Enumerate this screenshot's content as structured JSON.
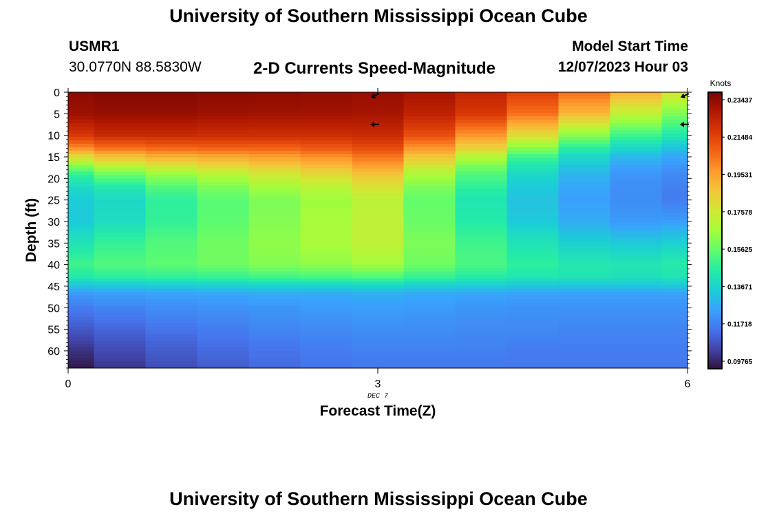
{
  "header": {
    "title": "University of Southern Mississippi Ocean Cube",
    "station_id": "USMR1",
    "coords": "30.0770N  88.5830W",
    "subtitle": "2-D Currents Speed-Magnitude",
    "model_start_label": "Model Start Time",
    "model_start_value": "12/07/2023 Hour 03"
  },
  "footer": {
    "title": "University of Southern Mississippi Ocean Cube"
  },
  "colors": {
    "colormap": [
      "#30123b",
      "#4145ab",
      "#4675ed",
      "#39a2fc",
      "#1bcfd4",
      "#24eca6",
      "#61fc6c",
      "#a4fc3b",
      "#d1e834",
      "#f3c63a",
      "#fe9b2d",
      "#f36315",
      "#d93806",
      "#b11901",
      "#7a0402"
    ]
  },
  "chart_data": {
    "type": "heatmap",
    "title": "2-D Currents Speed-Magnitude",
    "xlabel": "Forecast Time(Z)",
    "ylabel": "Depth (ft)",
    "x_date_label": "DEC 7",
    "xlim": [
      0,
      6
    ],
    "ylim": [
      0,
      64
    ],
    "y_inverted": true,
    "x_ticks": [
      0,
      3,
      6
    ],
    "y_ticks": [
      0,
      5,
      10,
      15,
      20,
      25,
      30,
      35,
      40,
      45,
      50,
      55,
      60
    ],
    "colorbar": {
      "label": "Knots",
      "range": [
        0.0937,
        0.2383
      ],
      "ticks": [
        "0.09765",
        "0.11718",
        "0.13671",
        "0.15625",
        "0.17578",
        "0.19531",
        "0.21484",
        "0.23437"
      ]
    },
    "x": [
      0,
      0.5,
      1,
      1.5,
      2,
      2.5,
      3,
      3.5,
      4,
      4.5,
      5,
      5.5,
      6
    ],
    "y": [
      0,
      5,
      10,
      13,
      15,
      17,
      19,
      22,
      25,
      30,
      35,
      40,
      43,
      45,
      47,
      50,
      55,
      60,
      64
    ],
    "speed_knots": [
      [
        0.235,
        0.236,
        0.236,
        0.235,
        0.235,
        0.234,
        0.233,
        0.23,
        0.224,
        0.216,
        0.205,
        0.192,
        0.178
      ],
      [
        0.232,
        0.233,
        0.233,
        0.232,
        0.231,
        0.231,
        0.23,
        0.225,
        0.218,
        0.205,
        0.19,
        0.172,
        0.16
      ],
      [
        0.218,
        0.222,
        0.222,
        0.221,
        0.221,
        0.221,
        0.222,
        0.212,
        0.198,
        0.18,
        0.162,
        0.15,
        0.144
      ],
      [
        0.2,
        0.205,
        0.207,
        0.208,
        0.208,
        0.21,
        0.213,
        0.198,
        0.183,
        0.162,
        0.146,
        0.138,
        0.132
      ],
      [
        0.18,
        0.188,
        0.192,
        0.194,
        0.196,
        0.199,
        0.204,
        0.187,
        0.17,
        0.15,
        0.138,
        0.13,
        0.126
      ],
      [
        0.162,
        0.172,
        0.178,
        0.182,
        0.186,
        0.19,
        0.196,
        0.177,
        0.16,
        0.143,
        0.133,
        0.125,
        0.122
      ],
      [
        0.148,
        0.157,
        0.164,
        0.17,
        0.176,
        0.181,
        0.187,
        0.168,
        0.153,
        0.138,
        0.129,
        0.122,
        0.119
      ],
      [
        0.139,
        0.144,
        0.153,
        0.16,
        0.166,
        0.171,
        0.178,
        0.16,
        0.147,
        0.134,
        0.126,
        0.12,
        0.117
      ],
      [
        0.134,
        0.138,
        0.147,
        0.154,
        0.16,
        0.165,
        0.171,
        0.156,
        0.143,
        0.132,
        0.124,
        0.12,
        0.116
      ],
      [
        0.134,
        0.14,
        0.148,
        0.155,
        0.161,
        0.167,
        0.172,
        0.157,
        0.145,
        0.134,
        0.127,
        0.123,
        0.124
      ],
      [
        0.142,
        0.148,
        0.153,
        0.158,
        0.163,
        0.167,
        0.172,
        0.16,
        0.15,
        0.142,
        0.136,
        0.134,
        0.136
      ],
      [
        0.15,
        0.153,
        0.155,
        0.158,
        0.161,
        0.163,
        0.166,
        0.158,
        0.152,
        0.147,
        0.144,
        0.143,
        0.145
      ],
      [
        0.144,
        0.146,
        0.147,
        0.148,
        0.15,
        0.151,
        0.152,
        0.148,
        0.145,
        0.143,
        0.142,
        0.141,
        0.142
      ],
      [
        0.132,
        0.133,
        0.134,
        0.135,
        0.136,
        0.136,
        0.137,
        0.135,
        0.134,
        0.133,
        0.132,
        0.132,
        0.133
      ],
      [
        0.122,
        0.123,
        0.124,
        0.125,
        0.126,
        0.126,
        0.127,
        0.126,
        0.125,
        0.124,
        0.124,
        0.124,
        0.124
      ],
      [
        0.116,
        0.118,
        0.12,
        0.121,
        0.122,
        0.123,
        0.124,
        0.123,
        0.122,
        0.121,
        0.121,
        0.121,
        0.121
      ],
      [
        0.108,
        0.111,
        0.114,
        0.116,
        0.118,
        0.119,
        0.12,
        0.12,
        0.119,
        0.119,
        0.118,
        0.118,
        0.118
      ],
      [
        0.1,
        0.105,
        0.109,
        0.112,
        0.114,
        0.116,
        0.117,
        0.117,
        0.117,
        0.116,
        0.116,
        0.116,
        0.116
      ],
      [
        0.095,
        0.101,
        0.106,
        0.109,
        0.112,
        0.114,
        0.115,
        0.115,
        0.115,
        0.115,
        0.115,
        0.115,
        0.115
      ]
    ],
    "vectors": [
      {
        "x": 3,
        "depth": 0,
        "direction": "southwest"
      },
      {
        "x": 3,
        "depth": 7,
        "direction": "west"
      },
      {
        "x": 6,
        "depth": 0,
        "direction": "southwest"
      },
      {
        "x": 6,
        "depth": 7,
        "direction": "west"
      }
    ]
  }
}
